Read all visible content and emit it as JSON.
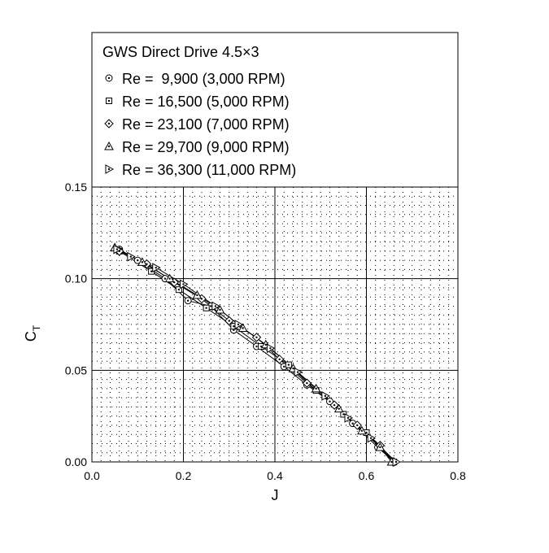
{
  "chart_data": {
    "type": "scatter",
    "title": "GWS Direct Drive 4.5×3",
    "xlabel": "J",
    "ylabel_main": "C",
    "ylabel_sub": "T",
    "xlim": [
      0,
      0.8
    ],
    "ylim": [
      0,
      0.15
    ],
    "xticks": [
      "0.0",
      "0.2",
      "0.4",
      "0.6",
      "0.8"
    ],
    "yticks": [
      "0.00",
      "0.05",
      "0.10",
      "0.15"
    ],
    "grid": {
      "major": true,
      "minor_dotted": true
    },
    "legend_position": "top (inside frame, above plot area)",
    "series": [
      {
        "name": "Re =  9,900 (3,000 RPM)",
        "marker": "circle-dot",
        "points": [
          [
            0.06,
            0.116
          ],
          [
            0.1,
            0.11
          ],
          [
            0.16,
            0.1
          ],
          [
            0.21,
            0.088
          ],
          [
            0.26,
            0.085
          ],
          [
            0.31,
            0.072
          ],
          [
            0.36,
            0.063
          ],
          [
            0.42,
            0.052
          ],
          [
            0.47,
            0.042
          ],
          [
            0.52,
            0.033
          ],
          [
            0.57,
            0.021
          ],
          [
            0.625,
            0.008
          ],
          [
            0.66,
            0.0
          ]
        ]
      },
      {
        "name": "Re = 16,500 (5,000 RPM)",
        "marker": "square-dot",
        "points": [
          [
            0.06,
            0.115
          ],
          [
            0.13,
            0.104
          ],
          [
            0.19,
            0.094
          ],
          [
            0.25,
            0.084
          ],
          [
            0.31,
            0.074
          ],
          [
            0.37,
            0.063
          ],
          [
            0.43,
            0.053
          ],
          [
            0.49,
            0.039
          ],
          [
            0.55,
            0.026
          ],
          [
            0.6,
            0.016
          ],
          [
            0.66,
            0.0
          ]
        ]
      },
      {
        "name": "Re = 23,100 (7,000 RPM)",
        "marker": "diamond-dot",
        "points": [
          [
            0.06,
            0.115
          ],
          [
            0.12,
            0.108
          ],
          [
            0.18,
            0.098
          ],
          [
            0.24,
            0.089
          ],
          [
            0.3,
            0.077
          ],
          [
            0.36,
            0.068
          ],
          [
            0.41,
            0.056
          ],
          [
            0.47,
            0.043
          ],
          [
            0.53,
            0.031
          ],
          [
            0.58,
            0.02
          ],
          [
            0.63,
            0.009
          ],
          [
            0.66,
            0.0
          ]
        ]
      },
      {
        "name": "Re = 29,700 (9,000 RPM)",
        "marker": "triangle-up-dot",
        "points": [
          [
            0.05,
            0.117
          ],
          [
            0.11,
            0.109
          ],
          [
            0.17,
            0.1
          ],
          [
            0.23,
            0.091
          ],
          [
            0.28,
            0.083
          ],
          [
            0.33,
            0.073
          ],
          [
            0.38,
            0.064
          ],
          [
            0.44,
            0.051
          ],
          [
            0.49,
            0.04
          ],
          [
            0.54,
            0.029
          ],
          [
            0.59,
            0.017
          ],
          [
            0.63,
            0.008
          ],
          [
            0.655,
            0.0
          ]
        ]
      },
      {
        "name": "Re = 36,300 (11,000 RPM)",
        "marker": "triangle-right-dot",
        "points": [
          [
            0.055,
            0.116
          ],
          [
            0.085,
            0.112
          ],
          [
            0.14,
            0.106
          ],
          [
            0.2,
            0.097
          ],
          [
            0.27,
            0.085
          ],
          [
            0.32,
            0.075
          ],
          [
            0.39,
            0.062
          ],
          [
            0.45,
            0.049
          ],
          [
            0.51,
            0.036
          ],
          [
            0.56,
            0.024
          ],
          [
            0.61,
            0.013
          ],
          [
            0.665,
            0.0
          ]
        ]
      }
    ]
  }
}
